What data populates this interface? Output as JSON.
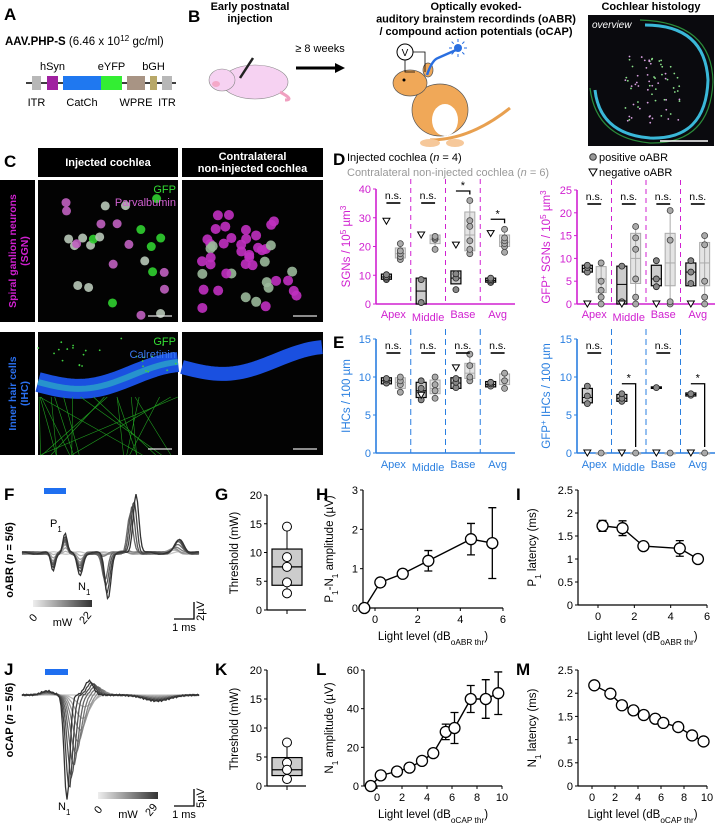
{
  "panel_labels": {
    "a": "A",
    "b": "B",
    "c": "C",
    "d": "D",
    "e": "E",
    "f": "F",
    "g": "G",
    "h": "H",
    "i": "I",
    "j": "J",
    "k": "K",
    "l": "L",
    "m": "M"
  },
  "panel_a": {
    "vector_name": "AAV.PHP-S",
    "titer_prefix": " (6.46 x 10",
    "titer_exp": "12",
    "titer_suffix": " gc/ml)",
    "elements": [
      {
        "label": "ITR",
        "color": "#b8b8b8",
        "pos": "below"
      },
      {
        "label": "hSyn",
        "color": "#a020a0",
        "pos": "above"
      },
      {
        "label": "CatCh",
        "color": "#1f78f0",
        "pos": "below"
      },
      {
        "label": "eYFP",
        "color": "#33ee33",
        "pos": "above"
      },
      {
        "label": "WPRE",
        "color": "#a89484",
        "pos": "below"
      },
      {
        "label": "bGH",
        "color": "#b8a868",
        "pos": "above"
      },
      {
        "label": "ITR",
        "color": "#b8b8b8",
        "pos": "below"
      }
    ]
  },
  "panel_b": {
    "injection_title": [
      "Early postnatal",
      "injection"
    ],
    "interval": "≥ 8 weeks",
    "recording_title": [
      "Optically evoked-",
      "auditory brainstem recordinds (oABR)",
      "/ compound action potentials (oCAP)"
    ],
    "voltmeter": "V",
    "histology_title": "Cochlear histology",
    "histology_label": "overview"
  },
  "panel_c": {
    "columns": [
      "Injected cochlea",
      [
        "Contralateral",
        "non-injected cochlea"
      ]
    ],
    "rows": [
      {
        "label": [
          "Spiral ganlion neurons",
          "(SGN)"
        ],
        "color": "#d020d0",
        "stains": [
          {
            "name": "GFP",
            "color": "#33dd33"
          },
          {
            "name": "Parvalbumin",
            "color": "#d060d0"
          }
        ]
      },
      {
        "label": [
          "Inner hair cells",
          "(IHC)"
        ],
        "color": "#2a70f0",
        "stains": [
          {
            "name": "GFP",
            "color": "#33dd33"
          },
          {
            "name": "Calretinin",
            "color": "#3a78f0"
          }
        ]
      }
    ]
  },
  "colors": {
    "magenta": "#d020d0",
    "blue": "#2a7fe0",
    "stim": "#1f6ff0"
  },
  "legend_d": {
    "injected": "Injected cochlea (",
    "injected_n": "n",
    "injected_rest": " = 4)",
    "contra": "Contralateral non-injected cochlea (",
    "contra_n": "n",
    "contra_rest": " = 6)",
    "positive": "positive oABR",
    "negative": "negative oABR"
  },
  "chart_data": [
    {
      "id": "d_left",
      "type": "box",
      "ylabel_parts": [
        "SGNs / 10",
        "5",
        " µm",
        "3"
      ],
      "ylim": [
        0,
        40
      ],
      "yticks": [
        0,
        10,
        20,
        30,
        40
      ],
      "categories": [
        "Apex",
        "Middle",
        "Base",
        "Avg"
      ],
      "significance": [
        "n.s.",
        "n.s.",
        "*",
        "*"
      ],
      "injected": [
        {
          "pos": [
            8.5,
            9,
            9.5,
            10.2
          ],
          "neg": [
            28.8
          ],
          "box": [
            8.6,
            10.4
          ],
          "med": 9.4
        },
        {
          "pos": [
            0.5,
            8.5
          ],
          "neg": [
            24
          ],
          "box": [
            0,
            9
          ],
          "med": 4.5
        },
        {
          "pos": [
            5,
            9,
            10.5
          ],
          "neg": [
            20.5
          ],
          "box": [
            7,
            11.5
          ],
          "med": 9
        },
        {
          "pos": [
            7.5,
            8,
            8.5,
            9
          ],
          "neg": [
            24.5
          ],
          "box": [
            7.6,
            9
          ],
          "med": 8.2
        }
      ],
      "contra": [
        {
          "pts": [
            15.5,
            16.5,
            17.5,
            18.5,
            21
          ],
          "box": [
            16,
            19.5
          ],
          "med": 17.5
        },
        {
          "pts": [
            19,
            22.5,
            23,
            23.5
          ],
          "box": [
            21,
            24
          ],
          "med": 22.5
        },
        {
          "pts": [
            17.5,
            19,
            22,
            27,
            29,
            36
          ],
          "box": [
            18.5,
            32
          ],
          "med": 24
        },
        {
          "pts": [
            18,
            20,
            21,
            22,
            23,
            26
          ],
          "box": [
            20,
            24
          ],
          "med": 21.5
        }
      ]
    },
    {
      "id": "d_right",
      "type": "box",
      "ylabel_parts": [
        "GFP",
        "+",
        " SGNs / 10",
        "5",
        " µm",
        "3"
      ],
      "ylim": [
        0,
        25
      ],
      "yticks": [
        0,
        5,
        10,
        15,
        20,
        25
      ],
      "categories": [
        "Apex",
        "Middle",
        "Base",
        "Avg"
      ],
      "significance": [
        "n.s.",
        "n.s.",
        "n.s.",
        "n.s."
      ],
      "injected": [
        {
          "pos": [
            7,
            8,
            8.5
          ],
          "neg": [
            0
          ],
          "box": [
            7,
            8.5
          ],
          "med": 7.8
        },
        {
          "pos": [
            0.5,
            8.3
          ],
          "neg": [
            0
          ],
          "box": [
            0,
            8.3
          ],
          "med": 4.3
        },
        {
          "pos": [
            3.8,
            5.5,
            9.5
          ],
          "neg": [
            0
          ],
          "box": [
            4,
            8.5
          ],
          "med": 5.5
        },
        {
          "pos": [
            4.5,
            7,
            9.5
          ],
          "neg": [
            0
          ],
          "box": [
            4,
            9
          ],
          "med": 7
        }
      ],
      "contra": [
        {
          "pts": [
            0,
            1.5,
            3,
            5,
            9
          ],
          "box": [
            2.5,
            8.2
          ],
          "med": 5.5
        },
        {
          "pts": [
            0,
            1.5,
            5.5,
            12,
            14.5,
            17
          ],
          "box": [
            4.5,
            15.5
          ],
          "med": 10
        },
        {
          "pts": [
            0,
            0.5,
            14,
            20.5
          ],
          "box": [
            4,
            15.5
          ],
          "med": 9
        },
        {
          "pts": [
            0,
            1.5,
            5,
            13,
            15
          ],
          "box": [
            4,
            13.5
          ],
          "med": 9
        }
      ]
    },
    {
      "id": "e_left",
      "type": "box",
      "ylabel_parts": [
        "IHCs / 100 µm"
      ],
      "ylim": [
        0,
        15
      ],
      "yticks": [
        0,
        5,
        10,
        15
      ],
      "categories": [
        "Apex",
        "Middle",
        "Base",
        "Avg"
      ],
      "significance": [
        "n.s.",
        "n.s.",
        "n.s.",
        "n.s."
      ],
      "injected": [
        {
          "pos": [
            9.2,
            9.6,
            9.8
          ],
          "neg": [],
          "box": [
            9.1,
            9.9
          ],
          "med": 9.5
        },
        {
          "pos": [
            7,
            8,
            8.5,
            9.5
          ],
          "neg": [
            7.6
          ],
          "box": [
            7.3,
            9.3
          ],
          "med": 8.2
        },
        {
          "pos": [
            8.6,
            9.3,
            9.8
          ],
          "neg": [
            11.2
          ],
          "box": [
            8.5,
            9.9
          ],
          "med": 9.2
        },
        {
          "pos": [
            8.8,
            9.1,
            9.3
          ],
          "neg": [],
          "box": [
            8.7,
            9.4
          ],
          "med": 9
        }
      ],
      "contra": [
        {
          "pts": [
            8,
            9,
            9.5,
            10
          ],
          "box": [
            8.5,
            9.9
          ],
          "med": 9.3
        },
        {
          "pts": [
            7.2,
            8.2,
            9,
            10
          ],
          "box": [
            7.8,
            9.6
          ],
          "med": 8.5
        },
        {
          "pts": [
            9.5,
            10,
            11.5,
            13
          ],
          "box": [
            9.8,
            11.8
          ],
          "med": 10.5
        },
        {
          "pts": [
            8.5,
            9.5,
            10.5
          ],
          "box": [
            9,
            10.4
          ],
          "med": 9.6
        }
      ]
    },
    {
      "id": "e_right",
      "type": "box",
      "ylabel_parts": [
        "GFP",
        "+",
        " IHCs / 100 µm"
      ],
      "ylim": [
        0,
        15
      ],
      "yticks": [
        0,
        5,
        10,
        15
      ],
      "categories": [
        "Apex",
        "Middle",
        "Base",
        "Avg"
      ],
      "significance": [
        "n.s.",
        "*",
        "n.s.",
        "*"
      ],
      "injected": [
        {
          "pos": [
            6.5,
            7.5,
            8.8
          ],
          "neg": [
            0
          ],
          "box": [
            6.6,
            8.5
          ],
          "med": 7.3
        },
        {
          "pos": [
            6.8,
            7.2,
            7.8
          ],
          "neg": [
            0
          ],
          "box": [
            6.8,
            7.7
          ],
          "med": 7.2
        },
        {
          "pos": [
            8.6
          ],
          "neg": [
            0
          ],
          "box": [
            8.5,
            8.7
          ],
          "med": 8.6
        },
        {
          "pos": [
            7.6,
            7.8
          ],
          "neg": [
            0
          ],
          "box": [
            7.5,
            7.9
          ],
          "med": 7.7
        }
      ],
      "contra": [
        {
          "pts": [
            0
          ],
          "box": [
            0,
            0
          ],
          "med": 0
        },
        {
          "pts": [
            0
          ],
          "box": [
            0,
            0
          ],
          "med": 0
        },
        {
          "pts": [
            0
          ],
          "box": [
            0,
            0
          ],
          "med": 0
        },
        {
          "pts": [
            0
          ],
          "box": [
            0,
            0
          ],
          "med": 0
        }
      ]
    },
    {
      "id": "g",
      "type": "box",
      "ylabel": "Threshold (mW)",
      "ylim": [
        0,
        20
      ],
      "yticks": [
        0,
        5,
        10,
        15,
        20
      ],
      "points": [
        14.5,
        9.2,
        7.5,
        4.8,
        2.9
      ],
      "q1": 4.3,
      "median": 7.5,
      "q3": 10.6,
      "whisker": [
        2.9,
        14.5
      ]
    },
    {
      "id": "h",
      "type": "line",
      "ylabel_parts": [
        "P",
        "1",
        "-N",
        "1",
        " amplitude (µV)"
      ],
      "xlabel_parts": [
        "Light level (dB",
        "oABR thr",
        ")"
      ],
      "xlim": [
        -0.5,
        6
      ],
      "xticks": [
        0,
        2,
        4,
        6
      ],
      "ylim": [
        0,
        3
      ],
      "yticks": [
        0,
        1,
        2,
        3
      ],
      "x": [
        -0.5,
        0.25,
        1.3,
        2.5,
        4.5,
        5.5
      ],
      "y": [
        0,
        0.65,
        0.87,
        1.2,
        1.75,
        1.65
      ],
      "err": [
        0,
        0.06,
        0.09,
        0.26,
        0.4,
        0.9
      ]
    },
    {
      "id": "i",
      "type": "line",
      "ylabel_parts": [
        "P",
        "1",
        " latency (ms)"
      ],
      "xlabel_parts": [
        "Light level (dB",
        "oABR thr",
        ")"
      ],
      "xlim": [
        -1,
        6
      ],
      "xticks": [
        0,
        2,
        4,
        6
      ],
      "ylim": [
        0,
        2.5
      ],
      "yticks": [
        0,
        0.5,
        1,
        1.5,
        2,
        2.5
      ],
      "x": [
        0.25,
        1.35,
        2.5,
        4.5,
        5.5
      ],
      "y": [
        1.72,
        1.67,
        1.28,
        1.23,
        1.0
      ],
      "err": [
        0.12,
        0.16,
        0.08,
        0.17,
        0.02
      ]
    },
    {
      "id": "k",
      "type": "box",
      "ylabel": "Threshold (mW)",
      "ylim": [
        0,
        20
      ],
      "yticks": [
        0,
        5,
        10,
        15,
        20
      ],
      "points": [
        7.5,
        4,
        2.8,
        1.2
      ],
      "q1": 1.8,
      "median": 2.8,
      "q3": 4.9,
      "whisker": [
        1.2,
        7.5
      ]
    },
    {
      "id": "l",
      "type": "line",
      "ylabel_parts": [
        "N",
        "1",
        " amplitude (µV)"
      ],
      "xlabel_parts": [
        "Light level (dB",
        "oCAP thr",
        ")"
      ],
      "xlim": [
        -1,
        10
      ],
      "xticks": [
        0,
        2,
        4,
        6,
        8,
        10
      ],
      "ylim": [
        0,
        60
      ],
      "yticks": [
        0,
        20,
        40,
        60
      ],
      "x": [
        -0.5,
        0.3,
        1.6,
        2.6,
        3.6,
        4.5,
        5.5,
        6.2,
        7.5,
        8.7,
        9.7
      ],
      "y": [
        0,
        5.5,
        7.5,
        9.5,
        13,
        17,
        28,
        30,
        45,
        45,
        48
      ],
      "err": [
        0,
        1,
        1.5,
        1,
        1,
        1,
        4,
        8,
        7,
        10,
        11
      ]
    },
    {
      "id": "m",
      "type": "line",
      "ylabel_parts": [
        "N",
        "1",
        " latency (ms)"
      ],
      "xlabel_parts": [
        "Light level (dB",
        "oCAP thr",
        ")"
      ],
      "xlim": [
        -1,
        10
      ],
      "xticks": [
        0,
        2,
        4,
        6,
        8,
        10
      ],
      "ylim": [
        0,
        2.5
      ],
      "yticks": [
        0,
        0.5,
        1,
        1.5,
        2,
        2.5
      ],
      "x": [
        0.2,
        1.6,
        2.6,
        3.6,
        4.5,
        5.5,
        6.2,
        7.5,
        8.7,
        9.7
      ],
      "y": [
        2.17,
        1.99,
        1.74,
        1.63,
        1.53,
        1.45,
        1.36,
        1.27,
        1.09,
        0.96
      ],
      "err": [
        0.05,
        0.04,
        0.06,
        0.05,
        0.05,
        0.05,
        0.04,
        0.05,
        0.05,
        0.04
      ]
    }
  ],
  "panel_f": {
    "ylabel": "oABR",
    "n_prefix": " (",
    "n": "n",
    "n_suffix": " = 5/6)",
    "peak_p": "P",
    "peak_n": "N",
    "sub": "1",
    "min_mw": "0",
    "max_mw": "22",
    "unit": "mW",
    "time_scale": "1 ms",
    "volt_scale": "2µV",
    "trace_count": 9
  },
  "panel_j": {
    "ylabel": "oCAP",
    "n_prefix": " (",
    "n": "n",
    "n_suffix": " = 5/6)",
    "peak_n": "N",
    "sub": "1",
    "min_mw": "0",
    "max_mw": "29",
    "unit": "mW",
    "time_scale": "1 ms",
    "volt_scale": "5µV",
    "trace_count": 10
  }
}
